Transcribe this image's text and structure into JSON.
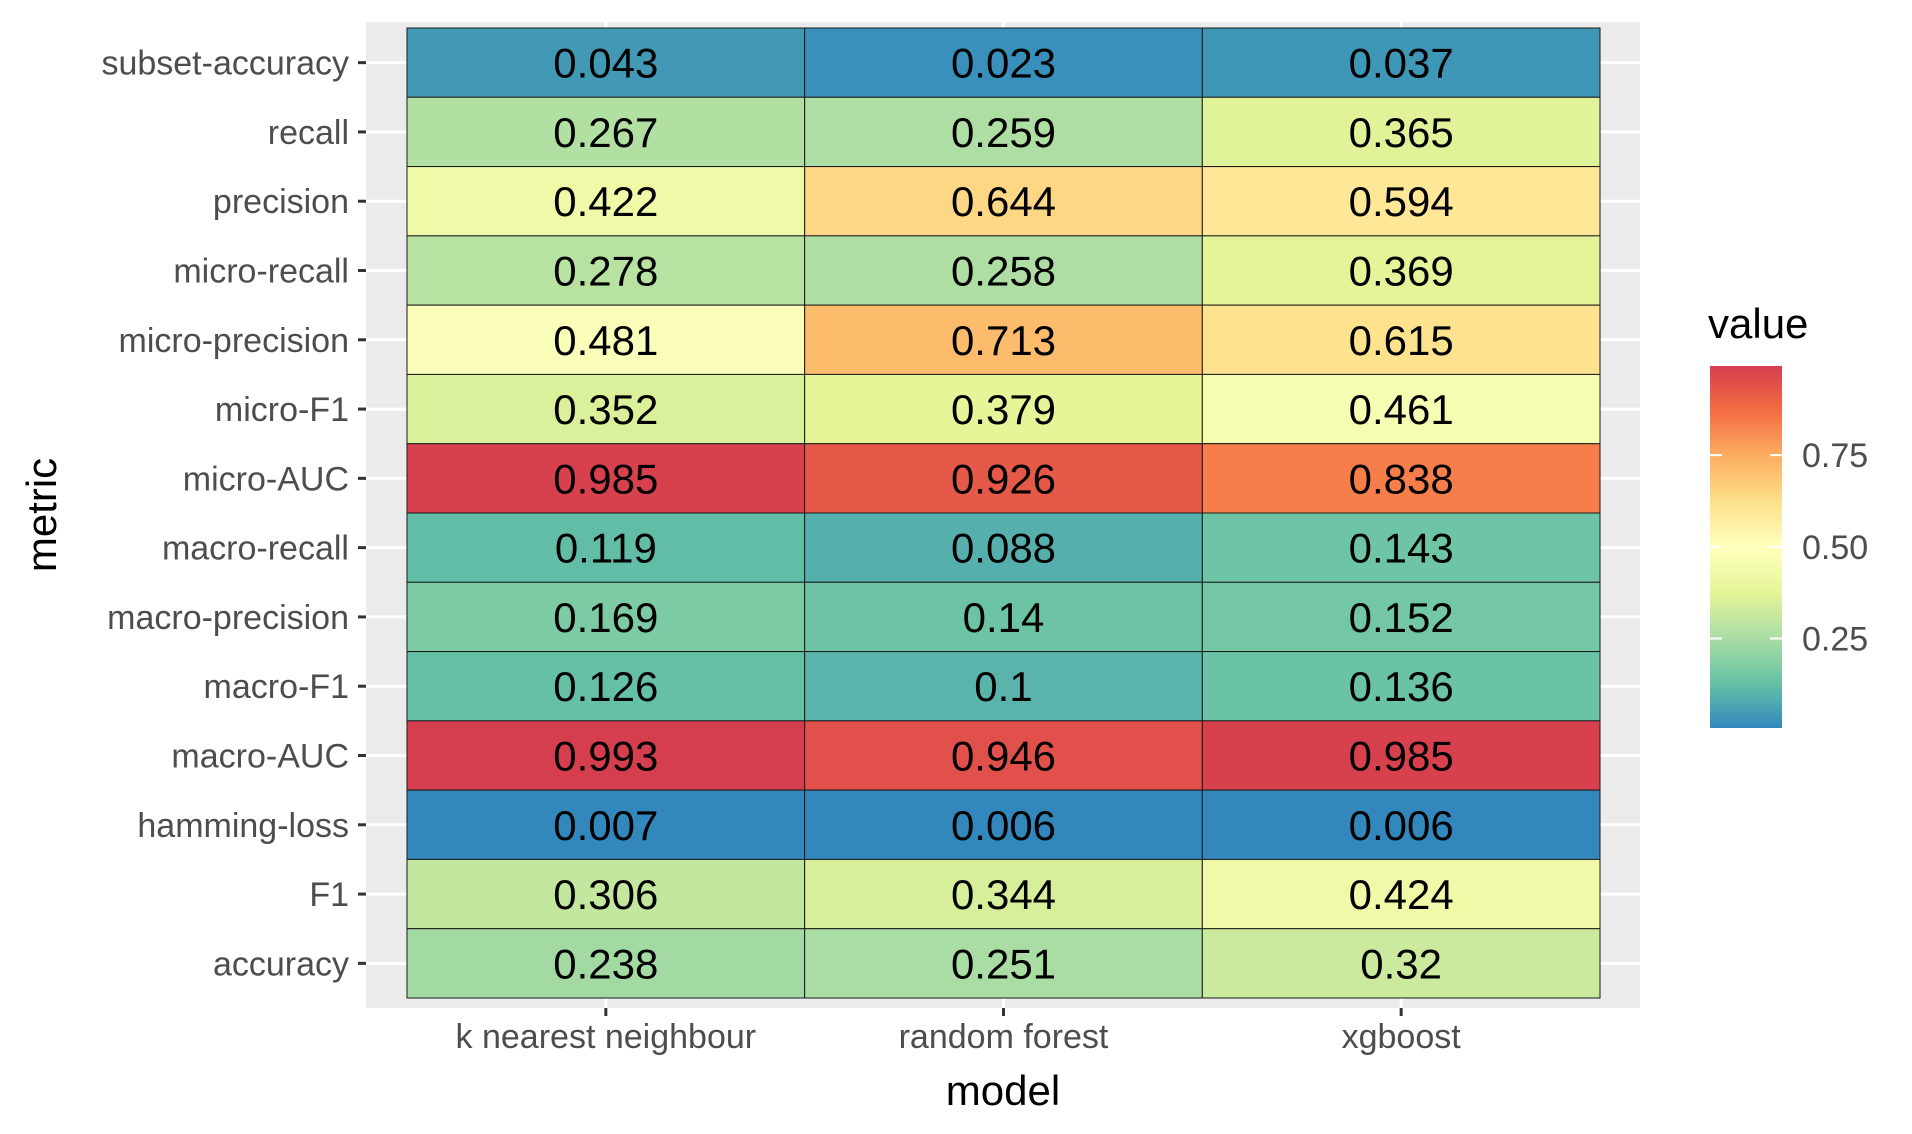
{
  "chart_data": {
    "type": "heatmap",
    "xlabel": "model",
    "ylabel": "metric",
    "x_categories": [
      "k nearest neighbour",
      "random forest",
      "xgboost"
    ],
    "y_categories": [
      "subset-accuracy",
      "recall",
      "precision",
      "micro-recall",
      "micro-precision",
      "micro-F1",
      "micro-AUC",
      "macro-recall",
      "macro-precision",
      "macro-F1",
      "macro-AUC",
      "hamming-loss",
      "F1",
      "accuracy"
    ],
    "values": [
      [
        0.043,
        0.023,
        0.037
      ],
      [
        0.267,
        0.259,
        0.365
      ],
      [
        0.422,
        0.644,
        0.594
      ],
      [
        0.278,
        0.258,
        0.369
      ],
      [
        0.481,
        0.713,
        0.615
      ],
      [
        0.352,
        0.379,
        0.461
      ],
      [
        0.985,
        0.926,
        0.838
      ],
      [
        0.119,
        0.088,
        0.143
      ],
      [
        0.169,
        0.14,
        0.152
      ],
      [
        0.126,
        0.1,
        0.136
      ],
      [
        0.993,
        0.946,
        0.985
      ],
      [
        0.007,
        0.006,
        0.006
      ],
      [
        0.306,
        0.344,
        0.424
      ],
      [
        0.238,
        0.251,
        0.32
      ]
    ],
    "cell_labels": [
      [
        "0.043",
        "0.023",
        "0.037"
      ],
      [
        "0.267",
        "0.259",
        "0.365"
      ],
      [
        "0.422",
        "0.644",
        "0.594"
      ],
      [
        "0.278",
        "0.258",
        "0.369"
      ],
      [
        "0.481",
        "0.713",
        "0.615"
      ],
      [
        "0.352",
        "0.379",
        "0.461"
      ],
      [
        "0.985",
        "0.926",
        "0.838"
      ],
      [
        "0.119",
        "0.088",
        "0.143"
      ],
      [
        "0.169",
        "0.14",
        "0.152"
      ],
      [
        "0.126",
        "0.1",
        "0.136"
      ],
      [
        "0.993",
        "0.946",
        "0.985"
      ],
      [
        "0.007",
        "0.006",
        "0.006"
      ],
      [
        "0.306",
        "0.344",
        "0.424"
      ],
      [
        "0.238",
        "0.251",
        "0.32"
      ]
    ],
    "legend": {
      "title": "value",
      "position": "right",
      "range": [
        0.006,
        0.993
      ],
      "ticks": [
        0.25,
        0.5,
        0.75
      ],
      "tick_labels": [
        "0.25",
        "0.50",
        "0.75"
      ]
    },
    "colorscale": {
      "name": "Spectral",
      "stops": [
        "#3288BD",
        "#66C2A5",
        "#ABDDA4",
        "#E6F598",
        "#FFFFBF",
        "#FEE08B",
        "#FDAE61",
        "#F46D43",
        "#D53E4F"
      ]
    },
    "panel_background": "#EBEBEB",
    "grid": true
  }
}
